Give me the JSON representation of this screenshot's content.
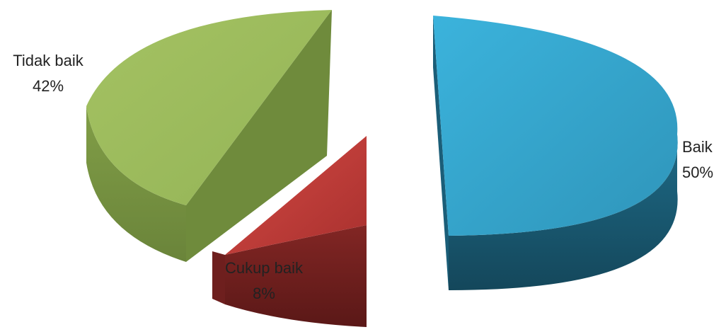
{
  "chart_data": {
    "type": "pie",
    "title": "",
    "slices": [
      {
        "label": "Baik",
        "value": 50,
        "percent_text": "50%",
        "color": "#36a9cf"
      },
      {
        "label": "Cukup baik",
        "value": 8,
        "percent_text": "8%",
        "color": "#b83836"
      },
      {
        "label": "Tidak baik",
        "value": 42,
        "percent_text": "42%",
        "color": "#9bbb59"
      }
    ],
    "exploded": true,
    "three_d": true
  }
}
